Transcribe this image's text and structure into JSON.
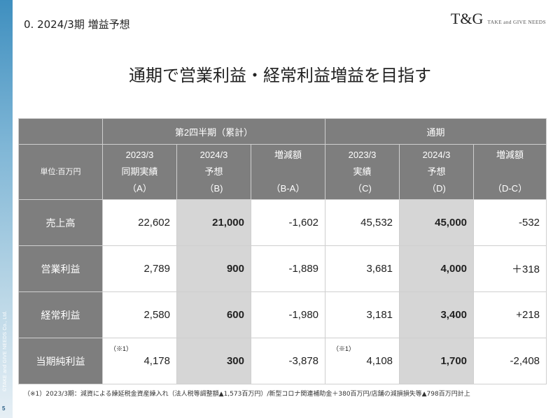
{
  "header": {
    "title": "0. 2024/3期 増益予想",
    "logo_mark": "T&G",
    "logo_text": "TAKE and GIVE NEEDS"
  },
  "headline": "通期で営業利益・経常利益増益を目指す",
  "table": {
    "group_headers": [
      "第2四半期（累計）",
      "通期"
    ],
    "unit_label": "単位:百万円",
    "columns": [
      {
        "line1": "2023/3",
        "line2": "同期実績",
        "line3": "（A）"
      },
      {
        "line1": "2024/3",
        "line2": "予想",
        "line3": "（B)"
      },
      {
        "line1": "増減額",
        "line2": "",
        "line3": "（B-A）"
      },
      {
        "line1": "2023/3",
        "line2": "実績",
        "line3": "（C)"
      },
      {
        "line1": "2024/3",
        "line2": "予想",
        "line3": "（D)"
      },
      {
        "line1": "増減額",
        "line2": "",
        "line3": "（D-C）"
      }
    ],
    "rows": [
      {
        "label": "売上高",
        "values": [
          "22,602",
          "21,000",
          "-1,602",
          "45,532",
          "45,000",
          "-532"
        ]
      },
      {
        "label": "営業利益",
        "values": [
          "2,789",
          "900",
          "-1,889",
          "3,681",
          "4,000",
          "＋318"
        ]
      },
      {
        "label": "経常利益",
        "values": [
          "2,580",
          "600",
          "-1,980",
          "3,181",
          "3,400",
          "+218"
        ]
      },
      {
        "label": "当期純利益",
        "values": [
          "4,178",
          "300",
          "-3,878",
          "4,108",
          "1,700",
          "-2,408"
        ]
      }
    ],
    "note_mark": "（※1）"
  },
  "footnote": "（※1）2023/3期：減資による繰延税金資産繰入れ（法人税等調整額▲1,573百万円）/新型コロナ関連補助金＋380百万円/店舗の減損損失等▲798百万円計上",
  "sidebar": {
    "copyright": "©TAKE and GIVE NEEDS Co., Ltd.",
    "page_number": "5"
  }
}
